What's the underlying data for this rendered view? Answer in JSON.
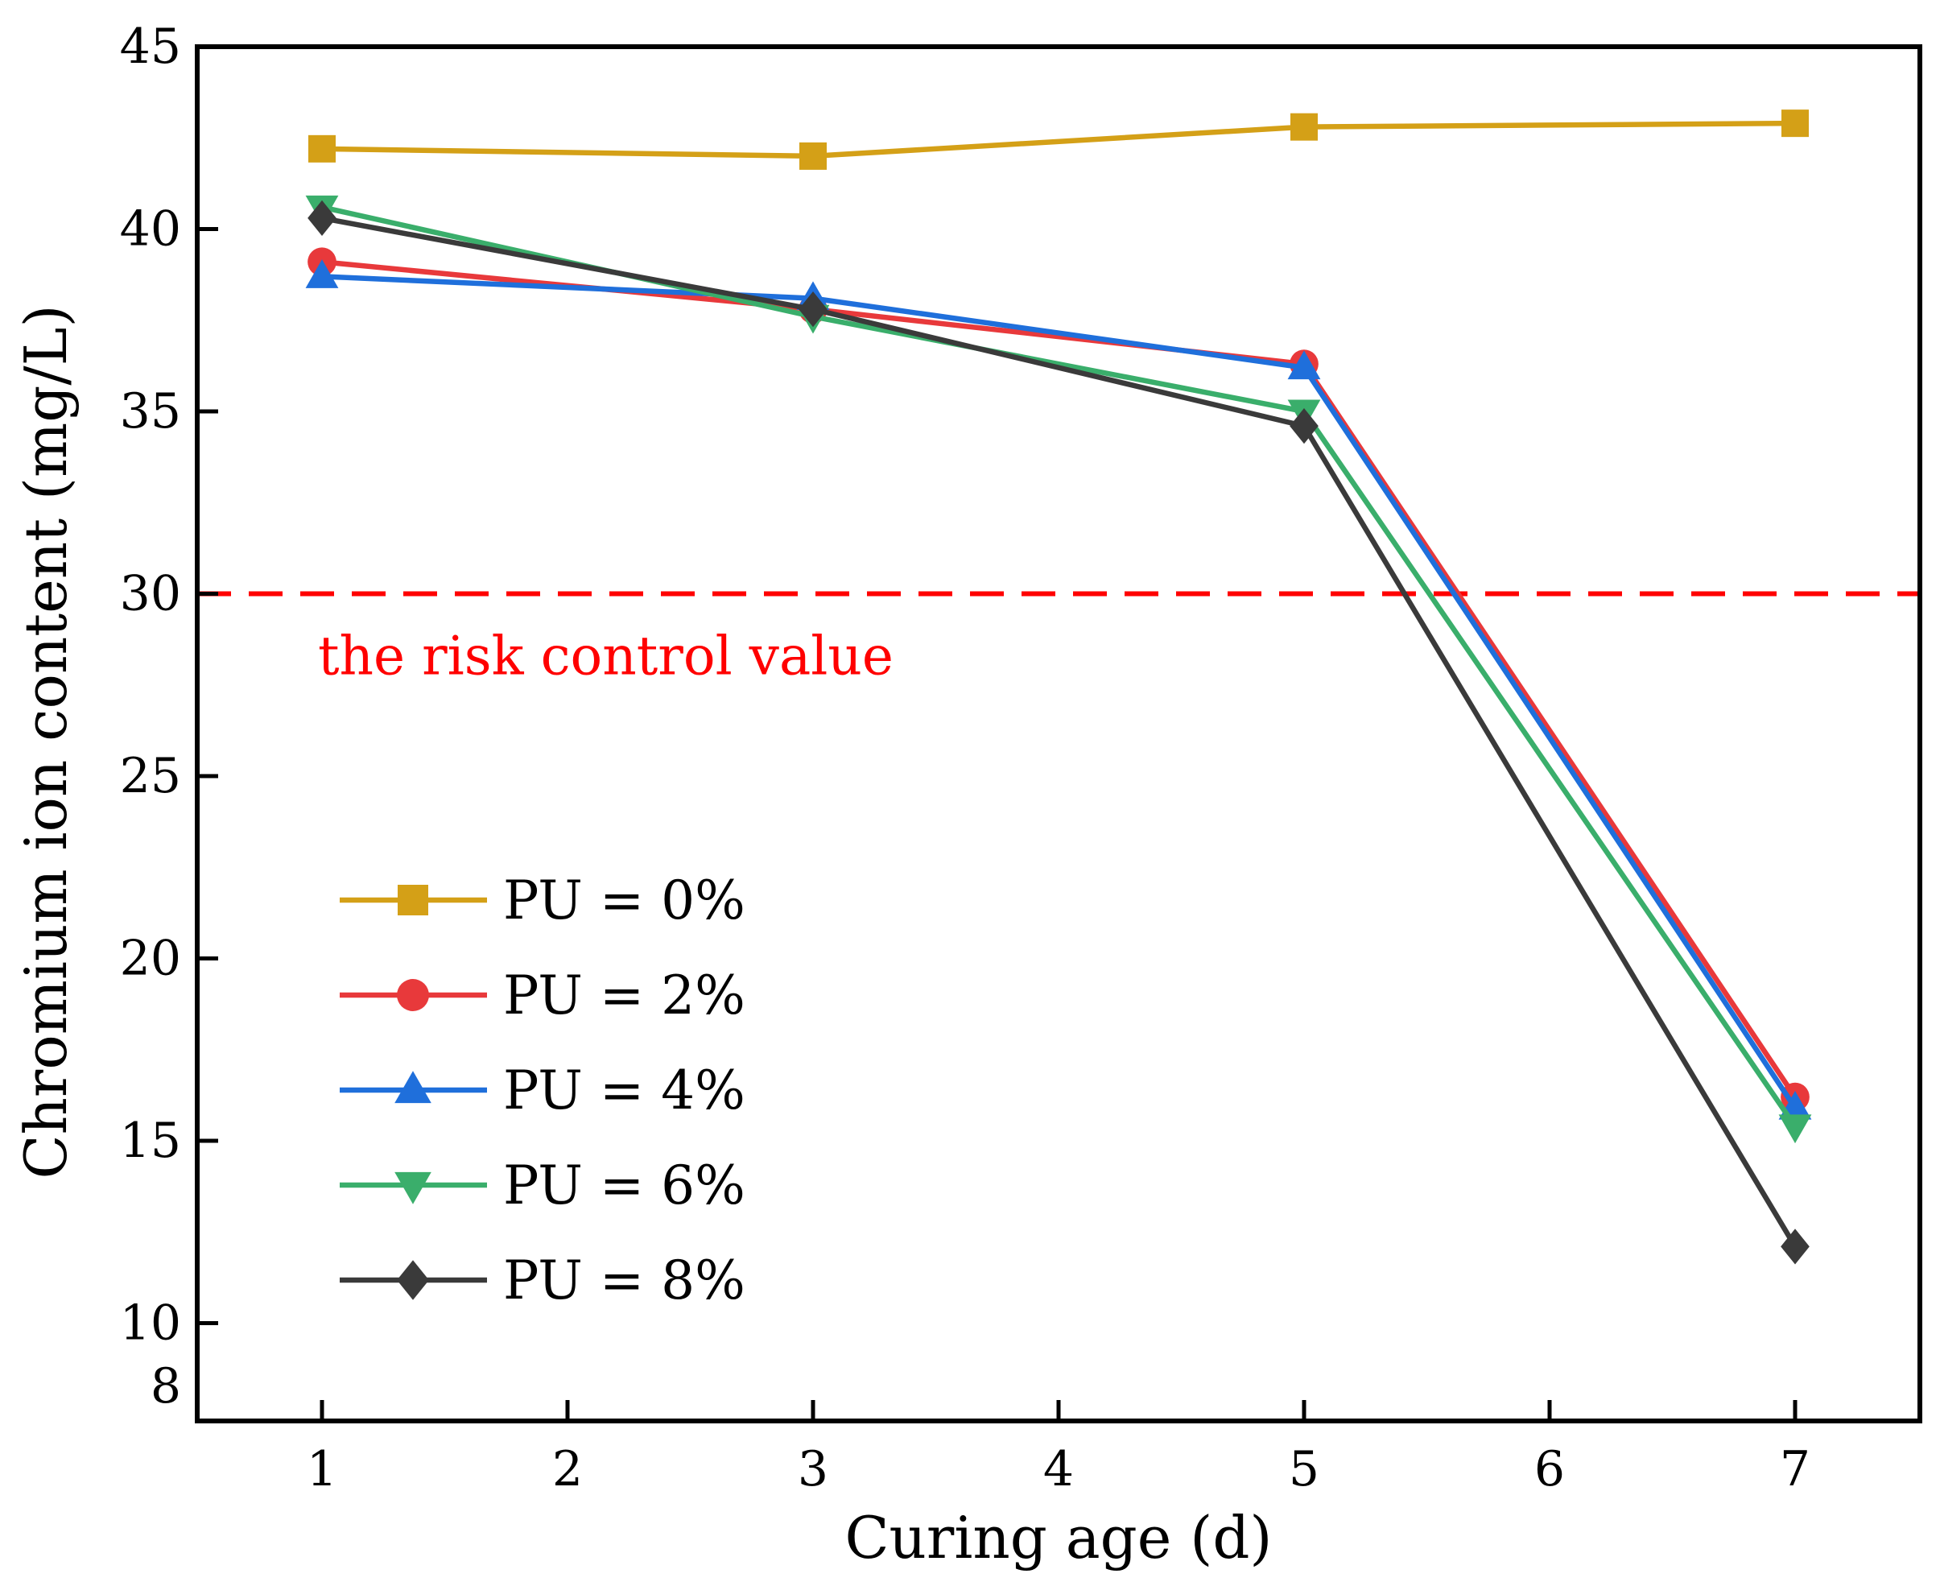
{
  "chart_data": {
    "type": "line",
    "xlabel": "Curing age (d)",
    "ylabel": "Chromium ion content (mg/L)",
    "xlim": [
      0.5,
      7.5
    ],
    "ylim": [
      8,
      45
    ],
    "xticks": [
      "1",
      "2",
      "3",
      "4",
      "5",
      "6",
      "7"
    ],
    "yticks": [
      "8",
      "10",
      "15",
      "20",
      "25",
      "30",
      "35",
      "40",
      "45"
    ],
    "x": [
      1,
      3,
      5,
      7
    ],
    "series": [
      {
        "name": "PU = 0%",
        "color": "#D4A017",
        "marker": "square",
        "values": [
          42.2,
          42.0,
          42.8,
          42.9
        ]
      },
      {
        "name": "PU = 2%",
        "color": "#E8393B",
        "marker": "circle",
        "values": [
          39.1,
          37.8,
          36.3,
          16.2
        ]
      },
      {
        "name": "PU = 4%",
        "color": "#1F6FDB",
        "marker": "triangle-up",
        "values": [
          38.7,
          38.1,
          36.2,
          15.9
        ]
      },
      {
        "name": "PU = 6%",
        "color": "#3AAE6B",
        "marker": "triangle-down",
        "values": [
          40.6,
          37.6,
          35.0,
          15.4
        ]
      },
      {
        "name": "PU = 8%",
        "color": "#3A3A3A",
        "marker": "diamond",
        "values": [
          40.3,
          37.8,
          34.6,
          12.1
        ]
      }
    ],
    "reference_line": {
      "value": 30,
      "color": "#FF0000",
      "style": "dashed",
      "label": "the risk control value"
    },
    "legend_position": "lower-left",
    "grid": false
  }
}
